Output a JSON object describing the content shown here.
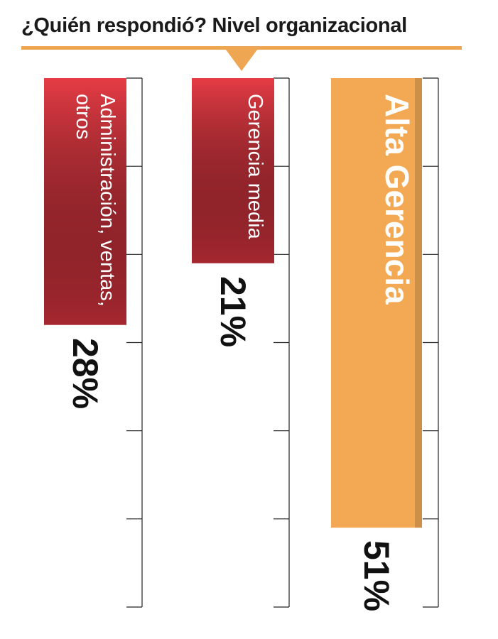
{
  "chart_data": {
    "type": "bar",
    "title": "¿Quién respondió? Nivel organizacional",
    "categories": [
      "Administración, ventas, otros",
      "Gerencia media",
      "Alta Gerencia"
    ],
    "values": [
      28,
      21,
      51
    ],
    "value_labels": [
      "28%",
      "21%",
      "51%"
    ],
    "colors": [
      "#c9303a",
      "#c9303a",
      "#f3a954"
    ],
    "ylim": [
      0,
      60
    ],
    "yticks": [
      0,
      10,
      20,
      30,
      40,
      50,
      60
    ]
  }
}
